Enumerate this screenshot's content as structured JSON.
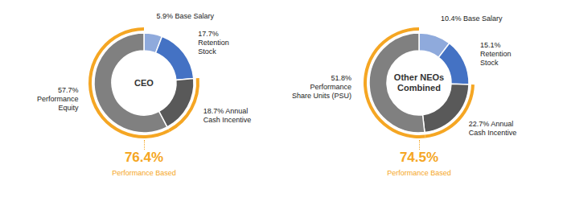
{
  "chart_data": [
    {
      "type": "pie",
      "title": "CEO",
      "values": [
        5.9,
        17.7,
        18.7,
        57.7
      ],
      "value_labels": [
        "5.9% Base Salary",
        "17.7%\nRetention\nStock",
        "18.7% Annual\nCash Incentive",
        "57.7%\nPerformance\nEquity"
      ],
      "colors": [
        "#8faadc",
        "#4472C4",
        "#595959",
        "#808080"
      ],
      "color": "#F5A623",
      "annotations": [
        {
          "text": "76.4%"
        },
        {
          "text": "Performance Based"
        }
      ]
    },
    {
      "type": "pie",
      "title": "Other NEOs\nCombined",
      "values": [
        10.4,
        15.1,
        22.7,
        51.8
      ],
      "value_labels": [
        "10.4% Base Salary",
        "15.1%\nRetention\nStock",
        "22.7% Annual\nCash Incentive",
        "51.8%\nPerformance\nShare Units (PSU)"
      ],
      "colors": [
        "#8faadc",
        "#4472C4",
        "#595959",
        "#808080"
      ],
      "color": "#F5A623",
      "annotations": [
        {
          "text": "74.5%"
        },
        {
          "text": "Performance Based"
        }
      ]
    }
  ]
}
